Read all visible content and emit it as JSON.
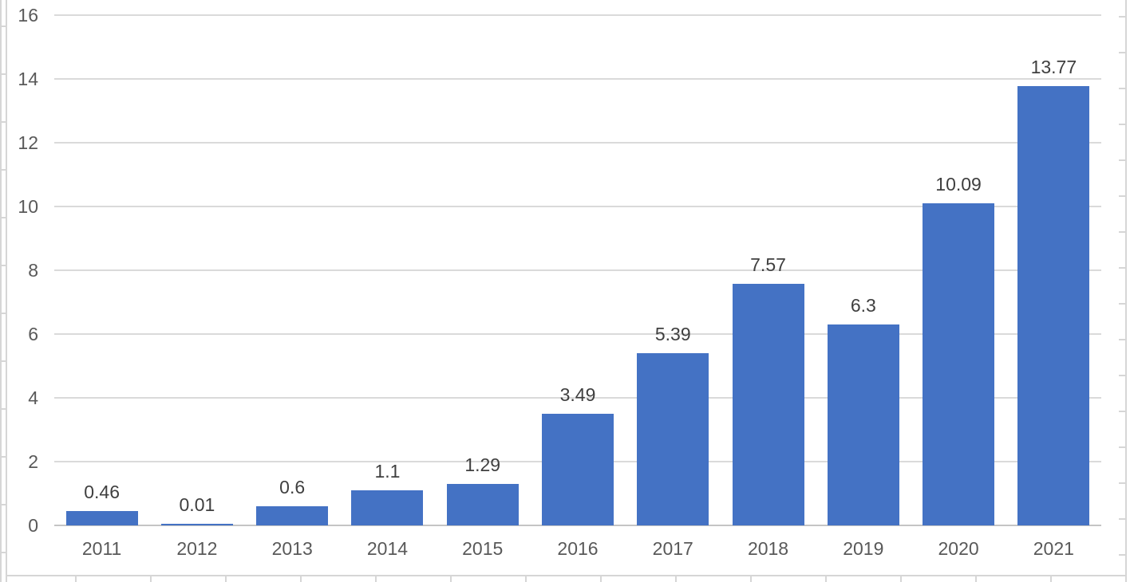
{
  "chart_data": {
    "type": "bar",
    "title": "",
    "xlabel": "",
    "ylabel": "",
    "categories": [
      "2011",
      "2012",
      "2013",
      "2014",
      "2015",
      "2016",
      "2017",
      "2018",
      "2019",
      "2020",
      "2021"
    ],
    "values": [
      0.46,
      0.01,
      0.6,
      1.1,
      1.29,
      3.49,
      5.39,
      7.57,
      6.3,
      10.09,
      13.77
    ],
    "data_labels": [
      "0.46",
      "0.01",
      "0.6",
      "1.1",
      "1.29",
      "3.49",
      "5.39",
      "7.57",
      "6.3",
      "10.09",
      "13.77"
    ],
    "ylim": [
      0,
      16
    ],
    "y_ticks": [
      0,
      2,
      4,
      6,
      8,
      10,
      12,
      14,
      16
    ],
    "grid": true,
    "legend": false,
    "colors": {
      "bar": "#4472C4",
      "gridline": "#DADADA",
      "axis_line": "#C4C4C4",
      "tick_label": "#595959",
      "data_label": "#3F3F3F",
      "sheet_gridline": "#D6D6D6",
      "background": "#FFFFFF"
    }
  }
}
